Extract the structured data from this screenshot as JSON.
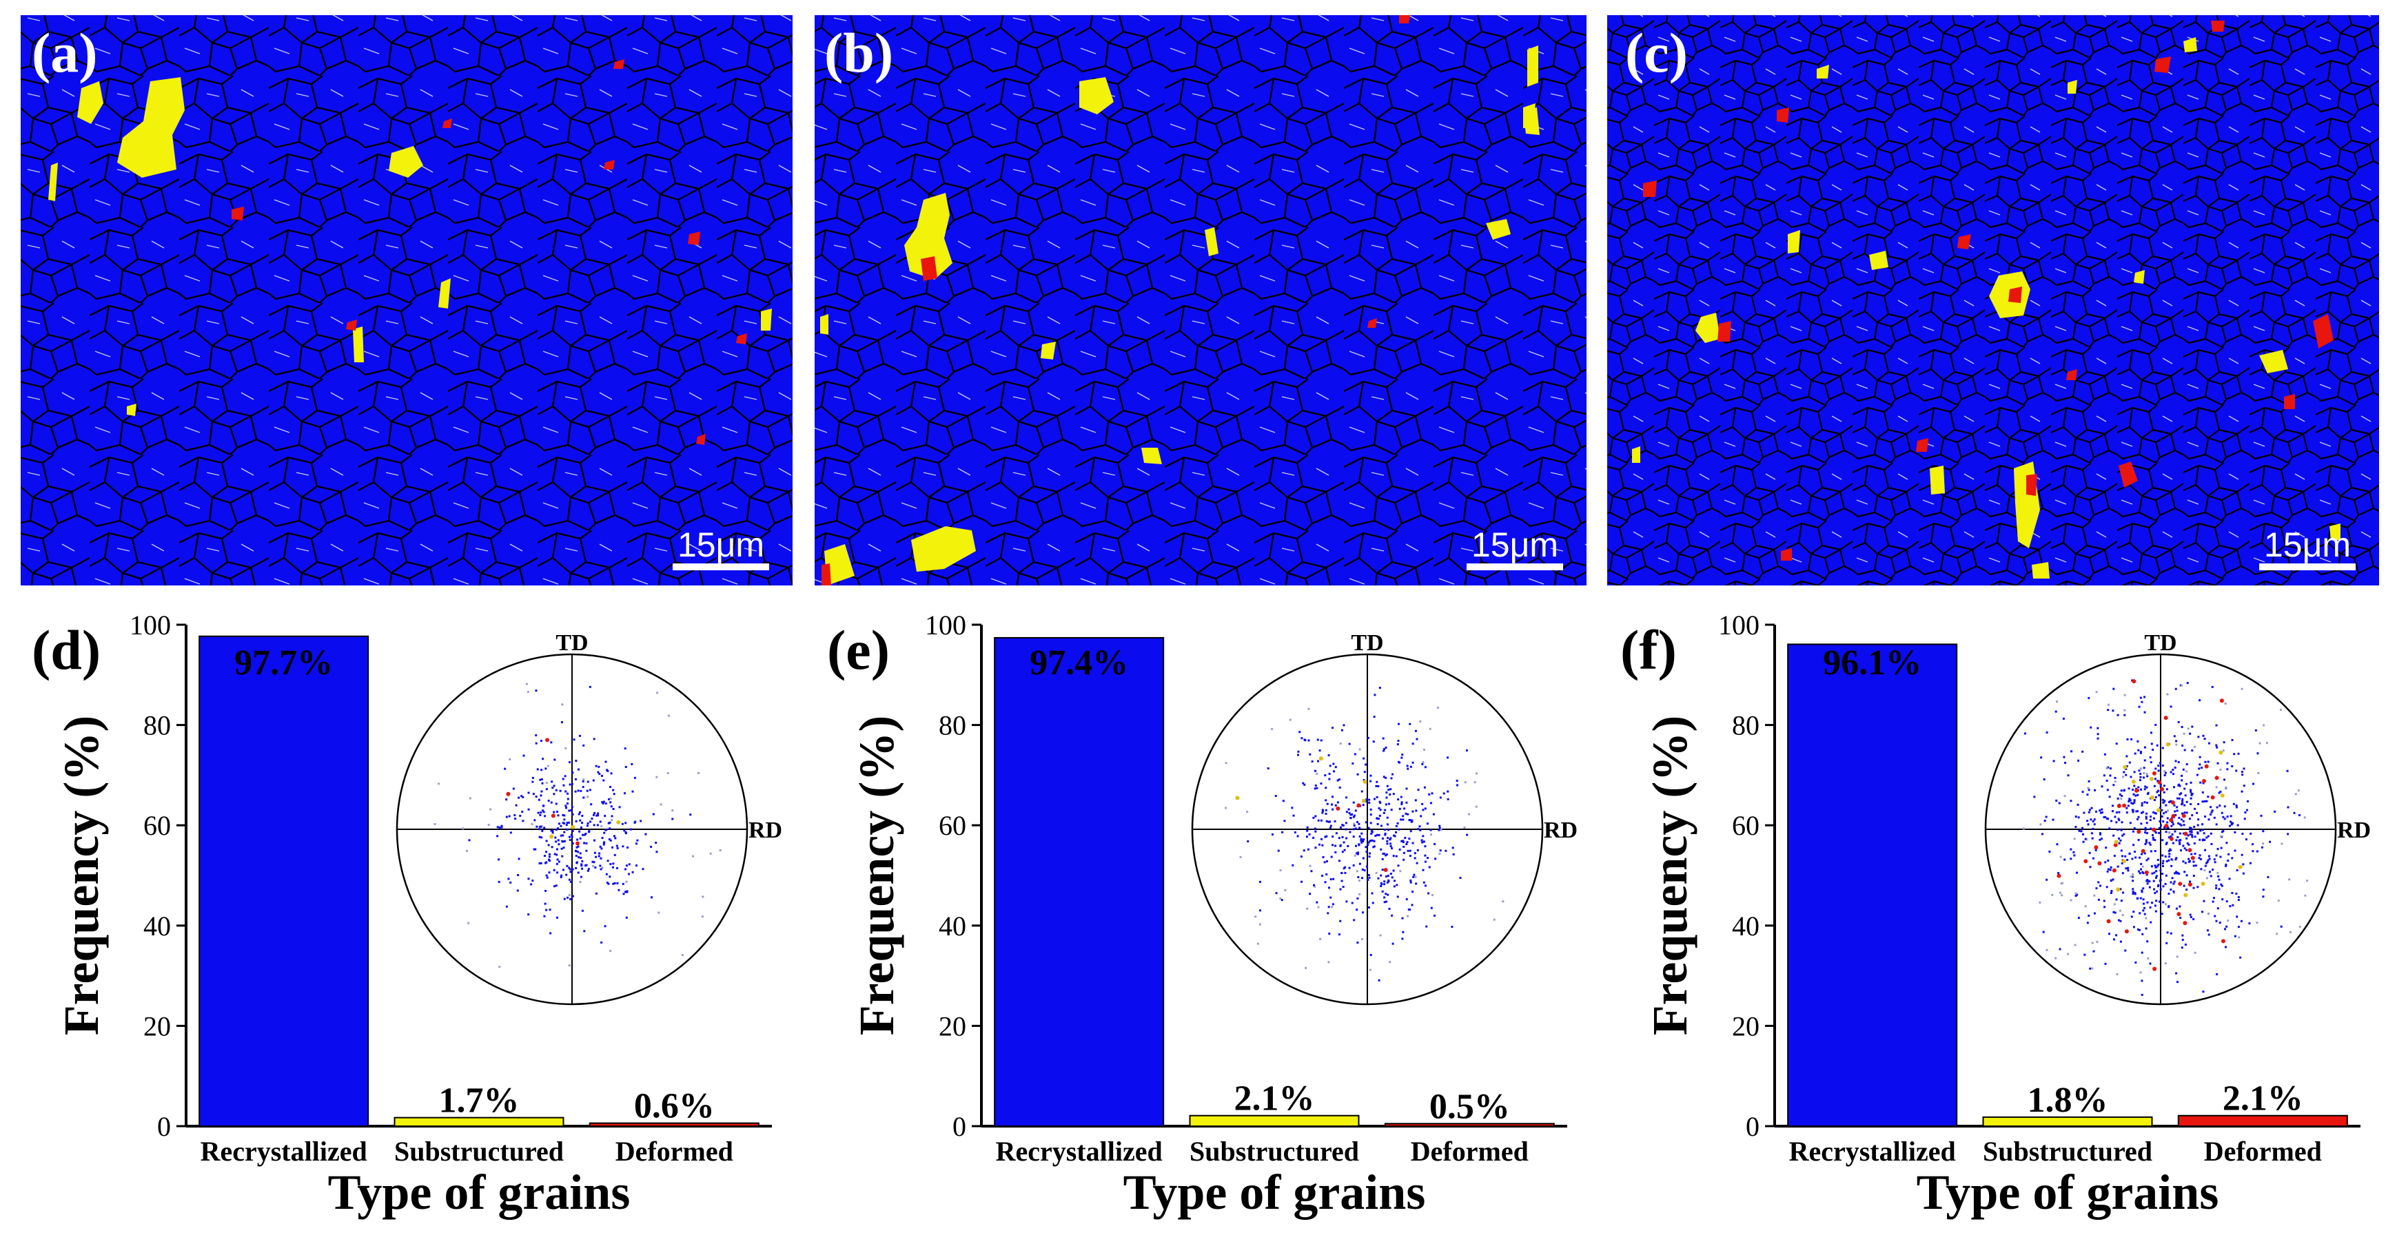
{
  "figure": {
    "colors": {
      "recrystallized": "#0b0bf0",
      "substructured": "#f2f20a",
      "deformed": "#e8160c",
      "boundary": "#000000",
      "subboundary": "#c8c8dc"
    },
    "maps": [
      {
        "label": "(a)",
        "scale_bar": "15μm"
      },
      {
        "label": "(b)",
        "scale_bar": "15μm"
      },
      {
        "label": "(c)",
        "scale_bar": "15μm"
      }
    ]
  },
  "chart_data": [
    {
      "type": "bar",
      "panel": "(d)",
      "categories": [
        "Recrystallized",
        "Substructured",
        "Deformed"
      ],
      "values": [
        97.7,
        1.7,
        0.6
      ],
      "labels": [
        "97.7%",
        "1.7%",
        "0.6%"
      ],
      "xlabel": "Type of grains",
      "ylabel": "Frequency (%)",
      "ylim": [
        0,
        100
      ],
      "yticks": [
        0,
        20,
        40,
        60,
        80,
        100
      ],
      "inset": {
        "type": "pole-figure",
        "top_label": "TD",
        "right_label": "RD"
      }
    },
    {
      "type": "bar",
      "panel": "(e)",
      "categories": [
        "Recrystallized",
        "Substructured",
        "Deformed"
      ],
      "values": [
        97.4,
        2.1,
        0.5
      ],
      "labels": [
        "97.4%",
        "2.1%",
        "0.5%"
      ],
      "xlabel": "Type of grains",
      "ylabel": "Frequency (%)",
      "ylim": [
        0,
        100
      ],
      "yticks": [
        0,
        20,
        40,
        60,
        80,
        100
      ],
      "inset": {
        "type": "pole-figure",
        "top_label": "TD",
        "right_label": "RD"
      }
    },
    {
      "type": "bar",
      "panel": "(f)",
      "categories": [
        "Recrystallized",
        "Substructured",
        "Deformed"
      ],
      "values": [
        96.1,
        1.8,
        2.1
      ],
      "labels": [
        "96.1%",
        "1.8%",
        "2.1%"
      ],
      "xlabel": "Type of grains",
      "ylabel": "Frequency (%)",
      "ylim": [
        0,
        100
      ],
      "yticks": [
        0,
        20,
        40,
        60,
        80,
        100
      ],
      "inset": {
        "type": "pole-figure",
        "top_label": "TD",
        "right_label": "RD"
      }
    }
  ]
}
